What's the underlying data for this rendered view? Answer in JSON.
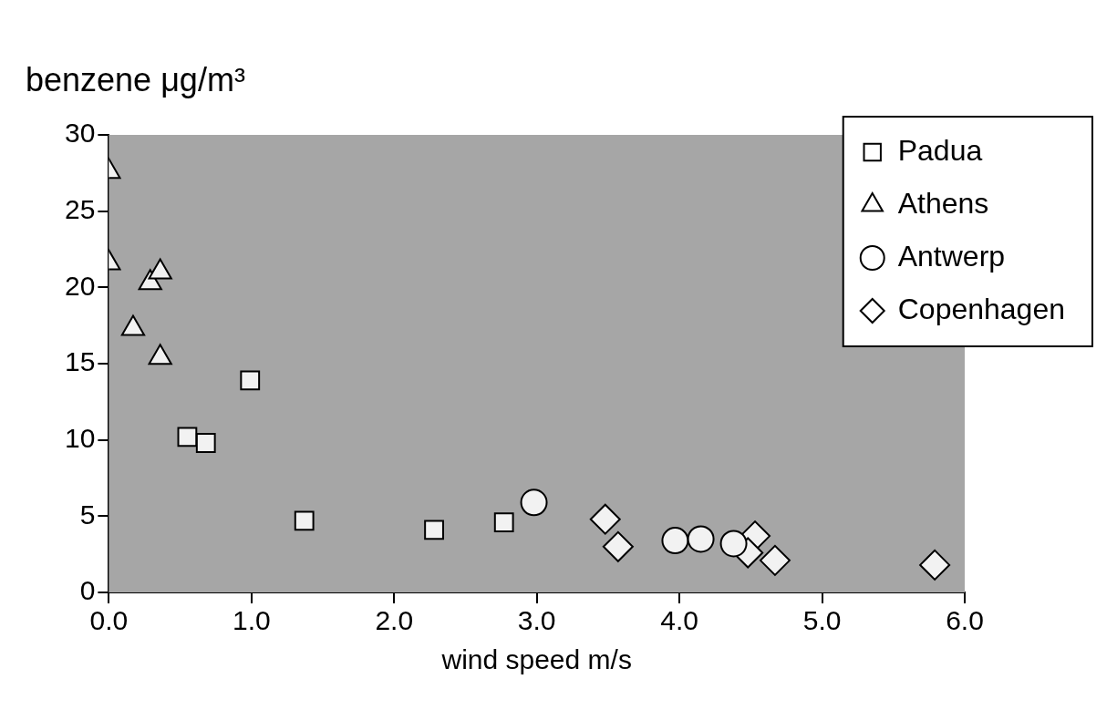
{
  "chart_data": {
    "type": "scatter",
    "ylabel": "benzene μg/m³",
    "xlabel": "wind speed m/s",
    "xlim": [
      0,
      6
    ],
    "ylim": [
      0,
      30
    ],
    "xticks": [
      {
        "value": 0,
        "label": "0.0"
      },
      {
        "value": 1,
        "label": "1.0"
      },
      {
        "value": 2,
        "label": "2.0"
      },
      {
        "value": 3,
        "label": "3.0"
      },
      {
        "value": 4,
        "label": "4.0"
      },
      {
        "value": 5,
        "label": "5.0"
      },
      {
        "value": 6,
        "label": "6.0"
      }
    ],
    "yticks": [
      0,
      5,
      10,
      15,
      20,
      25,
      30
    ],
    "grid": false,
    "legend": "top right",
    "series": [
      {
        "name": "Padua",
        "color": "#f2f2f2",
        "marker": "square",
        "x": [
          0.99,
          0.55,
          0.68,
          1.37,
          2.28,
          2.77
        ],
        "values": [
          13.9,
          10.2,
          9.8,
          4.7,
          4.1,
          4.6
        ]
      },
      {
        "name": "Athens",
        "color": "#f2f2f2",
        "marker": "triangle",
        "x": [
          0.0,
          0.0,
          0.29,
          0.36,
          0.17,
          0.36
        ],
        "values": [
          27.6,
          21.6,
          20.3,
          21.0,
          17.3,
          15.4
        ]
      },
      {
        "name": "Antwerp",
        "color": "#f2f2f2",
        "marker": "circle",
        "x": [
          2.98,
          3.97,
          4.15,
          4.38
        ],
        "values": [
          5.9,
          3.4,
          3.5,
          3.2
        ]
      },
      {
        "name": "Copenhagen",
        "color": "#f2f2f2",
        "marker": "diamond",
        "x": [
          3.48,
          3.57,
          4.53,
          4.48,
          4.67,
          5.79
        ],
        "values": [
          4.8,
          3.0,
          3.7,
          2.6,
          2.1,
          1.8
        ]
      }
    ]
  }
}
